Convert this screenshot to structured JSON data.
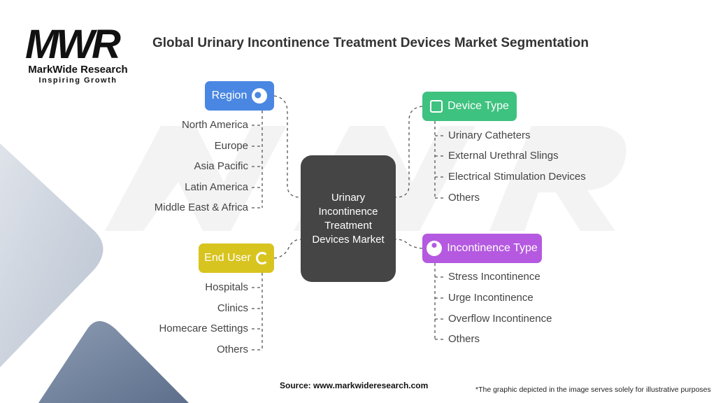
{
  "title": "Global Urinary Incontinence Treatment Devices Market Segmentation",
  "logo": {
    "mark": "MWR",
    "name": "MarkWide Research",
    "tagline": "Inspiring Growth"
  },
  "center": "Urinary Incontinence Treatment Devices Market",
  "segments": [
    {
      "label": "Region",
      "icon": "globe-icon",
      "color": "#4a87e2",
      "items": [
        "North America",
        "Europe",
        "Asia Pacific",
        "Latin America",
        "Middle East & Africa"
      ]
    },
    {
      "label": "Device Type",
      "icon": "devices-icon",
      "color": "#3ec27f",
      "items": [
        "Urinary Catheters",
        "External Urethral Slings",
        "Electrical Stimulation Devices",
        "Others"
      ]
    },
    {
      "label": "End User",
      "icon": "users-refresh-icon",
      "color": "#d8c41f",
      "items": [
        "Hospitals",
        "Clinics",
        "Homecare Settings",
        "Others"
      ]
    },
    {
      "label": "Incontinence Type",
      "icon": "info-person-icon",
      "color": "#b459e0",
      "items": [
        "Stress Incontinence",
        "Urge Incontinence",
        "Overflow Incontinence",
        "Others"
      ]
    }
  ],
  "source": "Source: www.markwideresearch.com",
  "note": "*The graphic depicted in the image serves solely for illustrative purposes"
}
